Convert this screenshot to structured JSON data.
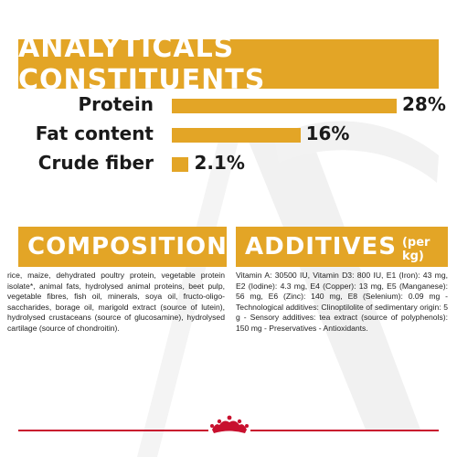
{
  "analytics": {
    "title": "ANALYTICALS CONSTITUENTS",
    "rows": [
      {
        "label": "Protein",
        "value_text": "28%",
        "value": 28
      },
      {
        "label": "Fat content",
        "value_text": "16%",
        "value": 16
      },
      {
        "label": "Crude fiber",
        "value_text": "2.1%",
        "value": 2.1
      }
    ]
  },
  "composition": {
    "title": "COMPOSITION",
    "text": "rice, maize, dehydrated poultry protein, vegetable protein isolate*, animal fats, hydrolysed animal proteins, beet pulp, vegetable fibres, fish oil, minerals, soya oil, fructo-oligo-saccharides, borage oil, marigold extract (source of lutein), hydrolysed crustaceans (source of glucosamine), hydrolysed cartilage (source of chondroitin)."
  },
  "additives": {
    "title": "ADDITIVES",
    "subtitle": "(per kg)",
    "text": "Vitamin A: 30500 IU, Vitamin D3: 800 IU, E1 (Iron): 43 mg, E2 (Iodine): 4.3 mg, E4 (Copper): 13 mg, E5 (Manganese): 56 mg, E6 (Zinc): 140 mg, E8 (Selenium): 0.09 mg - Technological additives: Clinoptilolite of sedimentary origin: 5 g - Sensory additives: tea extract (source of polyphenols): 150 mg - Preservatives - Antioxidants."
  },
  "colors": {
    "accent": "#e3a526",
    "brand_red": "#c8102e",
    "text": "#1a1a1a"
  },
  "logo": {
    "icon": "crown-icon"
  }
}
